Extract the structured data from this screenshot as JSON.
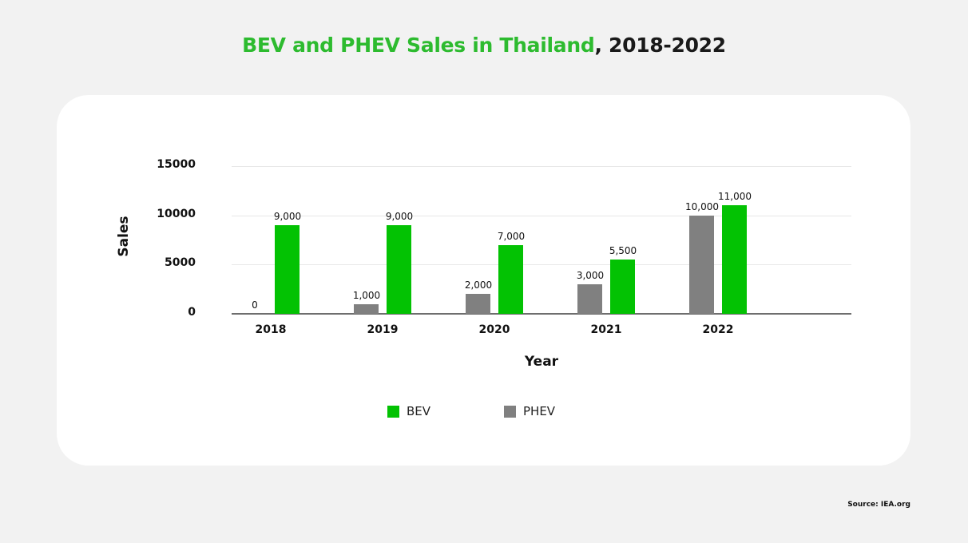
{
  "title": {
    "highlight": "BEV and PHEV Sales in Thailand",
    "rest": ", 2018-2022"
  },
  "source": "Source: IEA.org",
  "colors": {
    "bev": "#03c203",
    "phev": "#808080",
    "title_highlight": "#2dbb2f"
  },
  "legend": [
    {
      "label": "BEV",
      "color": "#03c203"
    },
    {
      "label": "PHEV",
      "color": "#808080"
    }
  ],
  "axes": {
    "xlabel": "Year",
    "ylabel": "Sales",
    "yticks": [
      "0",
      "5000",
      "10000",
      "15000"
    ],
    "xticks": [
      "2018",
      "2019",
      "2020",
      "2021",
      "2022"
    ]
  },
  "labels": {
    "bev": [
      "9,000",
      "9,000",
      "7,000",
      "5,500",
      "11,000"
    ],
    "phev": [
      "0",
      "1,000",
      "2,000",
      "3,000",
      "10,000"
    ]
  },
  "chart_data": {
    "type": "bar",
    "title": "BEV and PHEV Sales in Thailand, 2018-2022",
    "categories": [
      "2018",
      "2019",
      "2020",
      "2021",
      "2022"
    ],
    "series": [
      {
        "name": "PHEV",
        "values": [
          0,
          1000,
          2000,
          3000,
          10000
        ]
      },
      {
        "name": "BEV",
        "values": [
          9000,
          9000,
          7000,
          5500,
          11000
        ]
      }
    ],
    "xlabel": "Year",
    "ylabel": "Sales",
    "ylim": [
      0,
      15000
    ],
    "yticks": [
      0,
      5000,
      10000,
      15000
    ],
    "grid": true,
    "legend_position": "bottom"
  }
}
